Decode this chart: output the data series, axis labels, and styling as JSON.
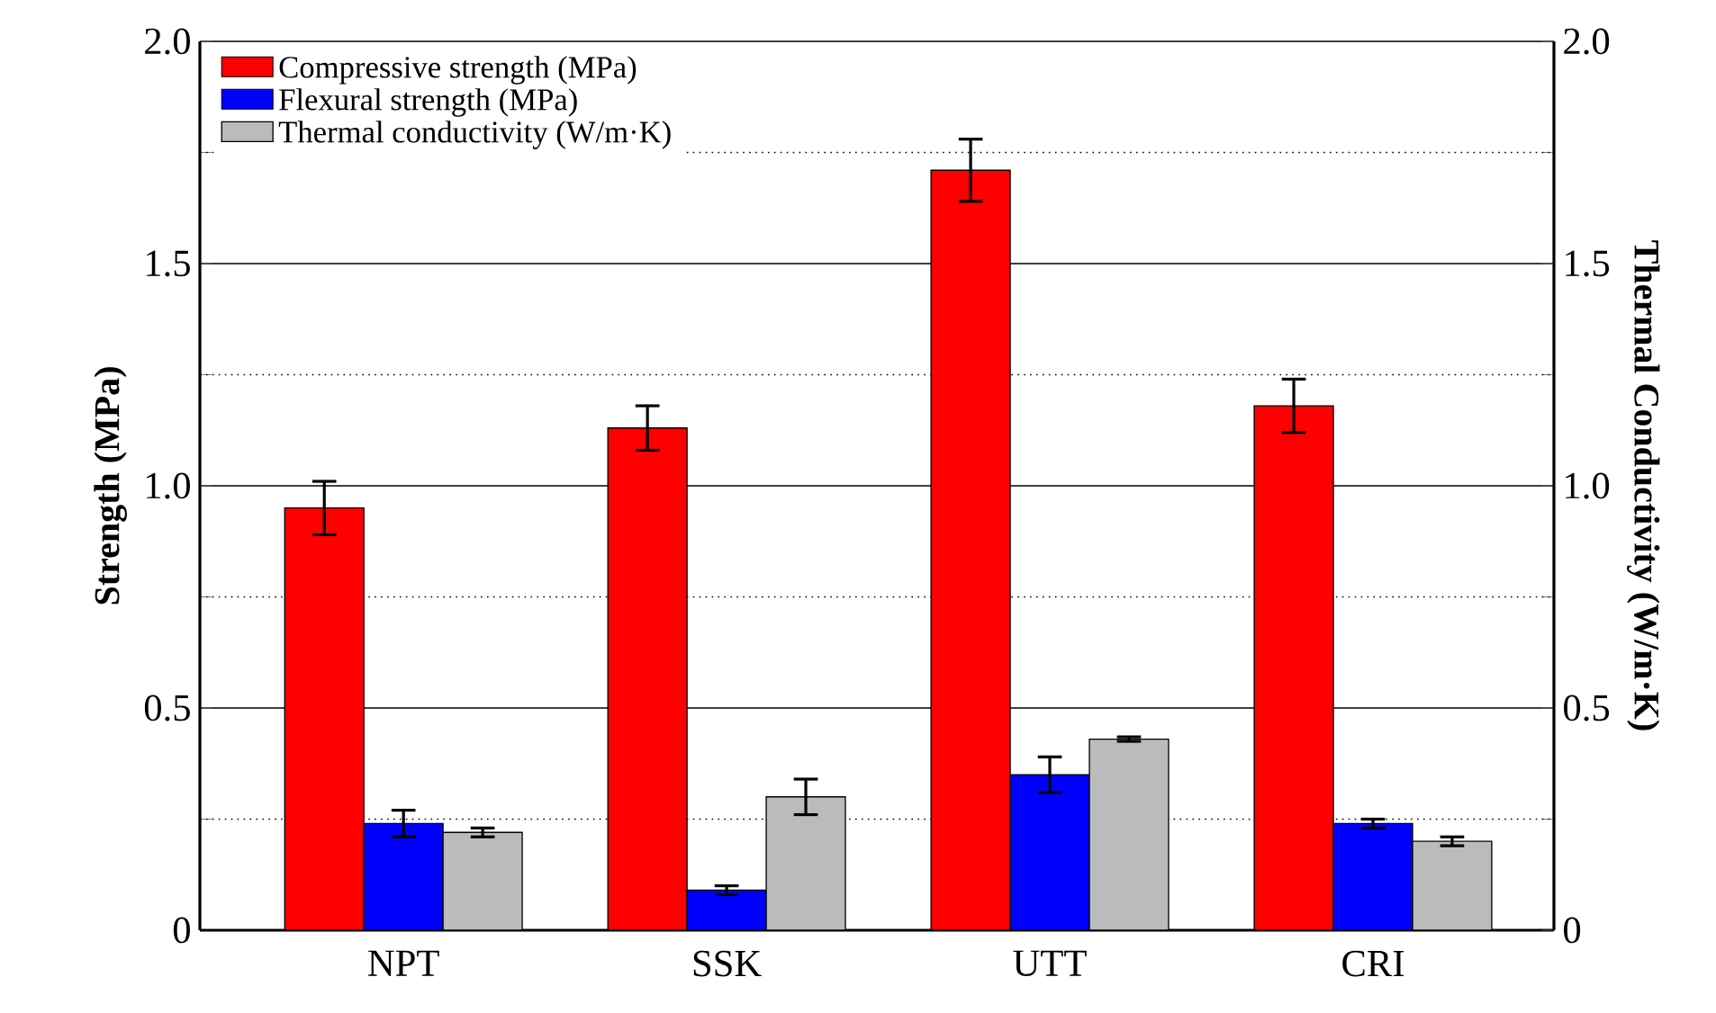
{
  "chart_data": {
    "type": "bar",
    "ylabel": "Strength (MPa)",
    "y2label": "Thermal Conductivity (W/m·K)",
    "categories": [
      "NPT",
      "SSK",
      "UTT",
      "CRI"
    ],
    "series": [
      {
        "name": "Compressive strength (MPa)",
        "color": "#ff0000",
        "values": [
          0.95,
          1.13,
          1.71,
          1.18
        ],
        "errors": [
          0.06,
          0.05,
          0.07,
          0.06
        ]
      },
      {
        "name": "Flexural strength (MPa)",
        "color": "#0000ff",
        "values": [
          0.24,
          0.09,
          0.35,
          0.24
        ],
        "errors": [
          0.03,
          0.01,
          0.04,
          0.01
        ]
      },
      {
        "name": "Thermal conductivity (W/m·K)",
        "color": "#bbbbbb",
        "values": [
          0.22,
          0.3,
          0.43,
          0.2
        ],
        "errors": [
          0.01,
          0.04,
          0.005,
          0.01
        ],
        "axis": "y2"
      }
    ],
    "ylim": [
      0,
      2
    ],
    "yticks": [
      0,
      {
        "value": 0.25,
        "label": null
      },
      {
        "value": 0.5,
        "label": "0.5"
      },
      {
        "value": 0.75,
        "label": null
      },
      {
        "value": 1,
        "label": "1.0"
      },
      {
        "value": 1.25,
        "label": null
      },
      {
        "value": 1.5,
        "label": "1.5"
      },
      {
        "value": 1.75,
        "label": null
      },
      {
        "value": 2,
        "label": "2.0"
      }
    ],
    "y2lim": [
      0,
      2
    ],
    "y2ticks": [
      0,
      {
        "value": 0.25,
        "label": null
      },
      {
        "value": 0.5,
        "label": "0.5"
      },
      {
        "value": 0.75,
        "label": null
      },
      {
        "value": 1,
        "label": "1.0"
      },
      {
        "value": 1.25,
        "label": null
      },
      {
        "value": 1.5,
        "label": "1.5"
      },
      {
        "value": 1.75,
        "label": null
      },
      {
        "value": 2,
        "label": "2.0"
      }
    ],
    "grid": "y",
    "legend": "top left"
  }
}
